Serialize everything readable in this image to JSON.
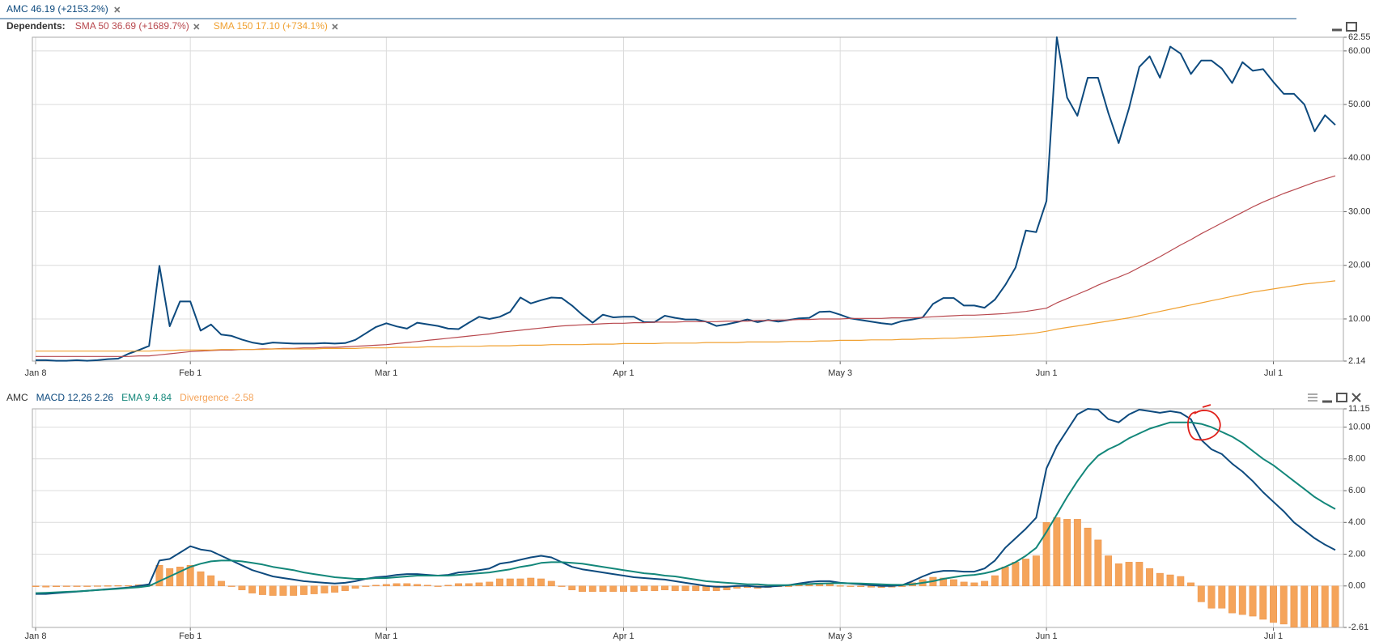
{
  "chart_data": [
    {
      "type": "line",
      "dependents_label": "Dependents:",
      "categories": [
        "Jan 8",
        null,
        null,
        null,
        null,
        null,
        null,
        null,
        null,
        null,
        null,
        null,
        null,
        null,
        null,
        "Feb 1",
        null,
        null,
        null,
        null,
        null,
        null,
        null,
        null,
        null,
        null,
        null,
        null,
        null,
        null,
        null,
        null,
        null,
        null,
        "Mar 1",
        null,
        null,
        null,
        null,
        null,
        null,
        null,
        null,
        null,
        null,
        null,
        null,
        null,
        null,
        null,
        null,
        null,
        null,
        null,
        null,
        null,
        null,
        "Apr 1",
        null,
        null,
        null,
        null,
        null,
        null,
        null,
        null,
        null,
        null,
        null,
        null,
        null,
        null,
        null,
        null,
        null,
        null,
        null,
        null,
        "May 3",
        null,
        null,
        null,
        null,
        null,
        null,
        null,
        null,
        null,
        null,
        null,
        null,
        null,
        null,
        null,
        null,
        null,
        null,
        null,
        "Jun 1",
        null,
        null,
        null,
        null,
        null,
        null,
        null,
        null,
        null,
        null,
        null,
        null,
        null,
        null,
        null,
        null,
        null,
        null,
        null,
        null,
        null,
        "Jul 1",
        null,
        null,
        null,
        null,
        null,
        null
      ],
      "ylim": [
        2.14,
        62.55
      ],
      "yticks": [
        {
          "value": 2.14,
          "label": "2.14"
        },
        {
          "value": 10,
          "label": "10.00"
        },
        {
          "value": 20,
          "label": "20.00"
        },
        {
          "value": 30,
          "label": "30.00"
        },
        {
          "value": 40,
          "label": "40.00"
        },
        {
          "value": 50,
          "label": "50.00"
        },
        {
          "value": 60,
          "label": "60.00"
        },
        {
          "value": 62.55,
          "label": "62.55"
        }
      ],
      "grid": true,
      "series": [
        {
          "name": "AMC 46.19 (+2153.2%)",
          "color": "#0d4a7e",
          "width": 2,
          "values": [
            2.3,
            2.3,
            2.2,
            2.2,
            2.3,
            2.2,
            2.3,
            2.5,
            2.6,
            3.5,
            4.2,
            4.96,
            19.9,
            8.63,
            13.26,
            13.26,
            7.82,
            8.97,
            7.08,
            6.83,
            6.15,
            5.6,
            5.3,
            5.6,
            5.5,
            5.4,
            5.4,
            5.4,
            5.5,
            5.4,
            5.5,
            6.1,
            7.3,
            8.5,
            9.2,
            8.6,
            8.2,
            9.3,
            9.0,
            8.7,
            8.2,
            8.1,
            9.3,
            10.4,
            10.0,
            10.4,
            11.3,
            14.0,
            12.9,
            13.5,
            14.0,
            13.9,
            12.5,
            10.8,
            9.3,
            10.8,
            10.3,
            10.4,
            10.4,
            9.4,
            9.4,
            10.6,
            10.2,
            9.9,
            9.9,
            9.5,
            8.7,
            9.0,
            9.4,
            9.9,
            9.4,
            9.8,
            9.5,
            9.8,
            10.1,
            10.2,
            11.3,
            11.4,
            10.8,
            10.1,
            9.8,
            9.5,
            9.2,
            9.0,
            9.6,
            9.9,
            10.3,
            12.8,
            13.9,
            13.9,
            12.5,
            12.5,
            12.1,
            13.6,
            16.3,
            19.6,
            26.5,
            26.2,
            32.0,
            62.55,
            51.3,
            47.9,
            55.0,
            55.0,
            48.4,
            42.8,
            49.3,
            57.0,
            59.0,
            55.0,
            60.8,
            59.5,
            55.7,
            58.2,
            58.2,
            56.7,
            54.0,
            57.9,
            56.3,
            56.6,
            54.2,
            52.0,
            52.0,
            50.0,
            45.0,
            48.0,
            46.19
          ]
        },
        {
          "name": "SMA 50 36.69 (+1689.7%)",
          "color": "#b8484e",
          "width": 1.2,
          "values": [
            3.0,
            3.0,
            3.0,
            3.0,
            3.0,
            3.0,
            3.0,
            3.0,
            3.0,
            3.0,
            3.1,
            3.1,
            3.3,
            3.5,
            3.7,
            3.9,
            4.0,
            4.1,
            4.2,
            4.2,
            4.3,
            4.3,
            4.4,
            4.4,
            4.5,
            4.5,
            4.6,
            4.6,
            4.7,
            4.7,
            4.8,
            4.9,
            5.0,
            5.1,
            5.2,
            5.4,
            5.6,
            5.8,
            6.0,
            6.2,
            6.4,
            6.6,
            6.8,
            7.0,
            7.2,
            7.5,
            7.7,
            7.9,
            8.1,
            8.3,
            8.5,
            8.7,
            8.8,
            8.9,
            9.0,
            9.1,
            9.2,
            9.2,
            9.3,
            9.3,
            9.4,
            9.4,
            9.4,
            9.5,
            9.5,
            9.5,
            9.5,
            9.6,
            9.6,
            9.6,
            9.7,
            9.7,
            9.8,
            9.8,
            9.9,
            9.9,
            10.0,
            10.0,
            10.0,
            10.1,
            10.1,
            10.1,
            10.1,
            10.2,
            10.2,
            10.2,
            10.3,
            10.4,
            10.5,
            10.6,
            10.7,
            10.7,
            10.8,
            10.9,
            11.0,
            11.2,
            11.4,
            11.7,
            12.0,
            13.0,
            13.8,
            14.6,
            15.4,
            16.3,
            17.1,
            17.8,
            18.6,
            19.6,
            20.6,
            21.6,
            22.7,
            23.8,
            24.8,
            25.9,
            26.9,
            27.9,
            28.9,
            29.9,
            30.9,
            31.8,
            32.6,
            33.4,
            34.1,
            34.8,
            35.5,
            36.1,
            36.69
          ]
        },
        {
          "name": "SMA 150 17.10 (+734.1%)",
          "color": "#f0a132",
          "width": 1.2,
          "values": [
            4.0,
            4.0,
            4.0,
            4.0,
            4.0,
            4.0,
            4.0,
            4.0,
            4.0,
            4.0,
            4.0,
            4.0,
            4.1,
            4.1,
            4.2,
            4.2,
            4.2,
            4.2,
            4.3,
            4.3,
            4.3,
            4.3,
            4.3,
            4.4,
            4.4,
            4.4,
            4.4,
            4.4,
            4.5,
            4.5,
            4.5,
            4.5,
            4.6,
            4.6,
            4.6,
            4.7,
            4.7,
            4.7,
            4.8,
            4.8,
            4.8,
            4.9,
            4.9,
            4.9,
            5.0,
            5.0,
            5.0,
            5.1,
            5.1,
            5.1,
            5.2,
            5.2,
            5.2,
            5.2,
            5.3,
            5.3,
            5.3,
            5.4,
            5.4,
            5.4,
            5.4,
            5.5,
            5.5,
            5.5,
            5.5,
            5.6,
            5.6,
            5.6,
            5.6,
            5.7,
            5.7,
            5.7,
            5.7,
            5.8,
            5.8,
            5.8,
            5.9,
            5.9,
            6.0,
            6.0,
            6.0,
            6.1,
            6.1,
            6.1,
            6.2,
            6.2,
            6.3,
            6.3,
            6.4,
            6.4,
            6.5,
            6.6,
            6.7,
            6.8,
            6.9,
            7.0,
            7.2,
            7.4,
            7.7,
            8.1,
            8.4,
            8.7,
            9.0,
            9.3,
            9.6,
            9.9,
            10.2,
            10.6,
            11.0,
            11.4,
            11.8,
            12.2,
            12.6,
            13.0,
            13.4,
            13.8,
            14.2,
            14.6,
            15.0,
            15.3,
            15.6,
            15.9,
            16.2,
            16.5,
            16.7,
            16.9,
            17.1
          ]
        }
      ]
    },
    {
      "type": "line",
      "title": "AMC",
      "categories": [
        "Jan 8",
        null,
        null,
        null,
        null,
        null,
        null,
        null,
        null,
        null,
        null,
        null,
        null,
        null,
        null,
        "Feb 1",
        null,
        null,
        null,
        null,
        null,
        null,
        null,
        null,
        null,
        null,
        null,
        null,
        null,
        null,
        null,
        null,
        null,
        null,
        "Mar 1",
        null,
        null,
        null,
        null,
        null,
        null,
        null,
        null,
        null,
        null,
        null,
        null,
        null,
        null,
        null,
        null,
        null,
        null,
        null,
        null,
        null,
        null,
        "Apr 1",
        null,
        null,
        null,
        null,
        null,
        null,
        null,
        null,
        null,
        null,
        null,
        null,
        null,
        null,
        null,
        null,
        null,
        null,
        null,
        null,
        "May 3",
        null,
        null,
        null,
        null,
        null,
        null,
        null,
        null,
        null,
        null,
        null,
        null,
        null,
        null,
        null,
        null,
        null,
        null,
        null,
        "Jun 1",
        null,
        null,
        null,
        null,
        null,
        null,
        null,
        null,
        null,
        null,
        null,
        null,
        null,
        null,
        null,
        null,
        null,
        null,
        null,
        null,
        null,
        "Jul 1",
        null,
        null,
        null,
        null,
        null,
        null
      ],
      "ylim": [
        -2.61,
        11.15
      ],
      "yticks": [
        {
          "value": -2.61,
          "label": "-2.61"
        },
        {
          "value": 0,
          "label": "0.00"
        },
        {
          "value": 2,
          "label": "2.00"
        },
        {
          "value": 4,
          "label": "4.00"
        },
        {
          "value": 6,
          "label": "6.00"
        },
        {
          "value": 8,
          "label": "8.00"
        },
        {
          "value": 10,
          "label": "10.00"
        },
        {
          "value": 11.15,
          "label": "11.15"
        }
      ],
      "grid": true,
      "series": [
        {
          "name": "MACD 12,26 2.26",
          "color": "#0d4a7e",
          "width": 2,
          "values": [
            -0.5,
            -0.5,
            -0.45,
            -0.4,
            -0.35,
            -0.3,
            -0.25,
            -0.2,
            -0.15,
            -0.1,
            0.0,
            0.1,
            1.6,
            1.7,
            2.1,
            2.5,
            2.3,
            2.2,
            1.9,
            1.6,
            1.3,
            1.0,
            0.8,
            0.6,
            0.5,
            0.4,
            0.3,
            0.25,
            0.2,
            0.15,
            0.2,
            0.3,
            0.45,
            0.55,
            0.6,
            0.7,
            0.75,
            0.75,
            0.7,
            0.65,
            0.7,
            0.85,
            0.9,
            1.0,
            1.1,
            1.4,
            1.5,
            1.65,
            1.8,
            1.9,
            1.8,
            1.5,
            1.2,
            1.05,
            0.95,
            0.85,
            0.75,
            0.65,
            0.55,
            0.5,
            0.45,
            0.4,
            0.3,
            0.2,
            0.1,
            0.0,
            -0.05,
            -0.05,
            0.0,
            0.0,
            -0.05,
            -0.05,
            0.0,
            0.05,
            0.15,
            0.25,
            0.3,
            0.3,
            0.2,
            0.15,
            0.1,
            0.05,
            0.0,
            0.0,
            0.05,
            0.3,
            0.6,
            0.85,
            0.95,
            0.95,
            0.9,
            0.9,
            1.1,
            1.6,
            2.4,
            3.0,
            3.6,
            4.3,
            7.4,
            8.8,
            9.8,
            10.8,
            11.15,
            11.1,
            10.5,
            10.3,
            10.8,
            11.1,
            11.0,
            10.9,
            11.0,
            10.9,
            10.5,
            9.2,
            8.6,
            8.3,
            7.7,
            7.2,
            6.6,
            5.9,
            5.3,
            4.7,
            4.0,
            3.5,
            3.0,
            2.6,
            2.26
          ]
        },
        {
          "name": "EMA 9 4.84",
          "color": "#13877a",
          "width": 2,
          "values": [
            -0.45,
            -0.43,
            -0.4,
            -0.37,
            -0.34,
            -0.3,
            -0.26,
            -0.22,
            -0.18,
            -0.13,
            -0.08,
            0.0,
            0.3,
            0.6,
            0.9,
            1.2,
            1.4,
            1.55,
            1.6,
            1.6,
            1.55,
            1.45,
            1.35,
            1.2,
            1.1,
            1.0,
            0.85,
            0.75,
            0.65,
            0.55,
            0.5,
            0.45,
            0.45,
            0.5,
            0.5,
            0.55,
            0.6,
            0.65,
            0.65,
            0.65,
            0.65,
            0.7,
            0.75,
            0.8,
            0.85,
            0.95,
            1.05,
            1.2,
            1.3,
            1.45,
            1.5,
            1.5,
            1.45,
            1.4,
            1.3,
            1.2,
            1.1,
            1.0,
            0.9,
            0.8,
            0.75,
            0.65,
            0.6,
            0.5,
            0.4,
            0.3,
            0.25,
            0.2,
            0.15,
            0.1,
            0.1,
            0.05,
            0.05,
            0.05,
            0.1,
            0.12,
            0.15,
            0.17,
            0.18,
            0.17,
            0.15,
            0.13,
            0.1,
            0.08,
            0.07,
            0.1,
            0.2,
            0.3,
            0.45,
            0.55,
            0.65,
            0.7,
            0.8,
            0.95,
            1.2,
            1.5,
            1.9,
            2.4,
            3.4,
            4.5,
            5.6,
            6.6,
            7.5,
            8.2,
            8.6,
            8.9,
            9.3,
            9.6,
            9.9,
            10.1,
            10.3,
            10.3,
            10.3,
            10.2,
            10.0,
            9.7,
            9.4,
            9.0,
            8.5,
            8.0,
            7.6,
            7.1,
            6.6,
            6.1,
            5.6,
            5.2,
            4.84
          ]
        },
        {
          "name": "Divergence -2.58",
          "color": "#f5a45a",
          "type": "bar",
          "values": [
            -0.05,
            -0.07,
            -0.05,
            -0.03,
            -0.01,
            0.0,
            0.01,
            0.02,
            0.03,
            0.03,
            0.08,
            0.1,
            1.3,
            1.1,
            1.2,
            1.3,
            0.9,
            0.65,
            0.3,
            0.0,
            -0.25,
            -0.45,
            -0.55,
            -0.6,
            -0.6,
            -0.6,
            -0.55,
            -0.5,
            -0.45,
            -0.4,
            -0.3,
            -0.15,
            0.0,
            0.05,
            0.1,
            0.15,
            0.15,
            0.1,
            0.05,
            0.0,
            0.05,
            0.15,
            0.15,
            0.2,
            0.25,
            0.45,
            0.45,
            0.45,
            0.5,
            0.45,
            0.3,
            0.0,
            -0.25,
            -0.35,
            -0.35,
            -0.35,
            -0.35,
            -0.35,
            -0.35,
            -0.3,
            -0.3,
            -0.25,
            -0.3,
            -0.3,
            -0.3,
            -0.3,
            -0.3,
            -0.25,
            -0.15,
            -0.1,
            -0.15,
            -0.1,
            -0.05,
            0.0,
            0.05,
            0.13,
            0.15,
            0.13,
            0.02,
            -0.02,
            -0.05,
            -0.08,
            -0.1,
            -0.08,
            -0.02,
            0.2,
            0.4,
            0.55,
            0.5,
            0.4,
            0.25,
            0.2,
            0.3,
            0.65,
            1.2,
            1.5,
            1.7,
            1.9,
            4.0,
            4.3,
            4.2,
            4.2,
            3.65,
            2.9,
            1.9,
            1.4,
            1.5,
            1.5,
            1.1,
            0.8,
            0.7,
            0.6,
            0.2,
            -1.0,
            -1.4,
            -1.4,
            -1.7,
            -1.8,
            -1.9,
            -2.1,
            -2.3,
            -2.4,
            -2.6,
            -2.6,
            -2.6,
            -2.6,
            -2.58
          ]
        }
      ]
    }
  ]
}
